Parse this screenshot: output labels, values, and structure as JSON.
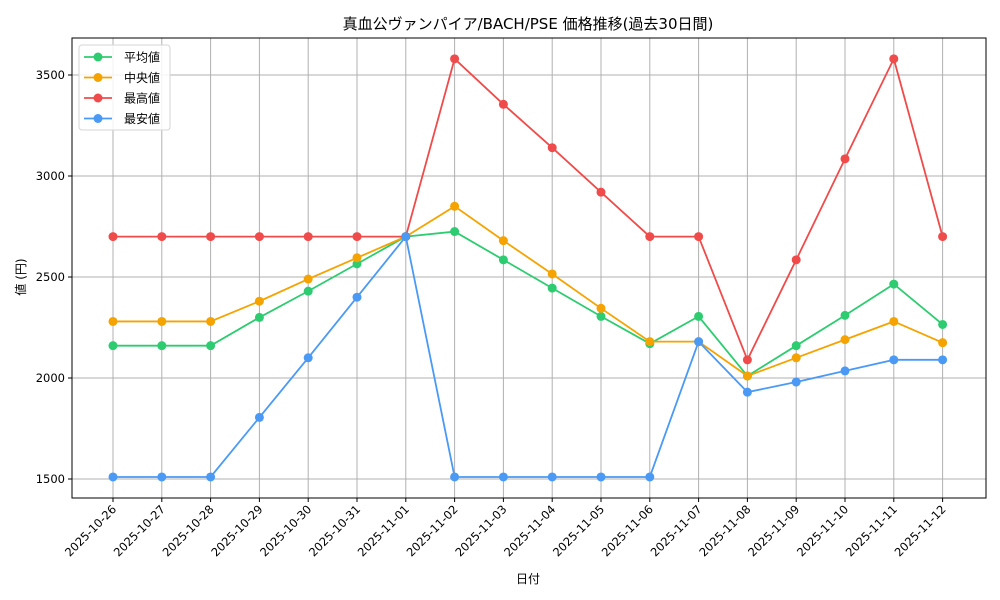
{
  "chart_data": {
    "type": "line",
    "title": "真血公ヴァンパイア/BACH/PSE 価格推移(過去30日間)",
    "xlabel": "日付",
    "ylabel": "値 (円)",
    "ylim": [
      1400,
      3680
    ],
    "yticks": [
      1500,
      2000,
      2500,
      3000,
      3500
    ],
    "grid": true,
    "legend_position": "upper left",
    "categories": [
      "2025-10-26",
      "2025-10-27",
      "2025-10-28",
      "2025-10-29",
      "2025-10-30",
      "2025-10-31",
      "2025-11-01",
      "2025-11-02",
      "2025-11-03",
      "2025-11-04",
      "2025-11-05",
      "2025-11-06",
      "2025-11-07",
      "2025-11-08",
      "2025-11-09",
      "2025-11-10",
      "2025-11-11",
      "2025-11-12"
    ],
    "series": [
      {
        "name": "平均値",
        "color": "#2ecc71",
        "values": [
          2160,
          2160,
          2160,
          2300,
          2430,
          2565,
          2700,
          2725,
          2585,
          2445,
          2305,
          2170,
          2305,
          2010,
          2160,
          2310,
          2465,
          2265
        ]
      },
      {
        "name": "中央値",
        "color": "#f5a300",
        "values": [
          2280,
          2280,
          2280,
          2380,
          2490,
          2595,
          2700,
          2850,
          2680,
          2515,
          2345,
          2180,
          2180,
          2010,
          2100,
          2190,
          2280,
          2175
        ]
      },
      {
        "name": "最高値",
        "color": "#f04b4b",
        "values": [
          2700,
          2700,
          2700,
          2700,
          2700,
          2700,
          2700,
          3580,
          3355,
          3140,
          2920,
          2700,
          2700,
          2090,
          2585,
          3085,
          3580,
          2700
        ]
      },
      {
        "name": "最安値",
        "color": "#4a9af5",
        "values": [
          1510,
          1510,
          1510,
          1805,
          2100,
          2400,
          2700,
          1510,
          1510,
          1510,
          1510,
          1510,
          2180,
          1930,
          1980,
          2035,
          2090,
          2090
        ]
      }
    ]
  }
}
